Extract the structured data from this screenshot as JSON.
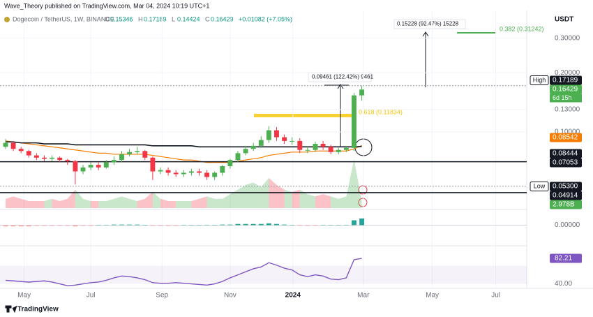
{
  "header": {
    "publisher": "Wave_Theory published on TradingView.com, Mar 04, 2024 10:19 UTC+1",
    "symbol": "Dogecoin / TetherUS, 1W, BINANCE",
    "ohlc": [
      {
        "key": "O",
        "value": "0.15346"
      },
      {
        "key": "H",
        "value": "0.17189"
      },
      {
        "key": "L",
        "value": "0.14424"
      },
      {
        "key": "C",
        "value": "0.16429"
      }
    ],
    "change": "+0.01082 (+7.05%)",
    "currency": "USDT"
  },
  "chart_data": {
    "type": "candlestick",
    "log_scale": true,
    "up_color": "#4caf50",
    "down_color": "#f23645",
    "open": [
      0.084,
      0.088,
      0.082,
      0.08,
      0.076,
      0.074,
      0.073,
      0.074,
      0.072,
      0.071,
      0.063,
      0.066,
      0.068,
      0.066,
      0.07,
      0.072,
      0.077,
      0.079,
      0.08,
      0.074,
      0.063,
      0.064,
      0.062,
      0.061,
      0.062,
      0.063,
      0.062,
      0.059,
      0.062,
      0.067,
      0.072,
      0.078,
      0.082,
      0.085,
      0.091,
      0.102,
      0.094,
      0.09,
      0.09,
      0.081,
      0.081,
      0.087,
      0.084,
      0.079,
      0.081,
      0.083,
      0.15346
    ],
    "high": [
      0.092,
      0.09,
      0.084,
      0.081,
      0.078,
      0.076,
      0.076,
      0.075,
      0.073,
      0.072,
      0.068,
      0.07,
      0.07,
      0.072,
      0.075,
      0.08,
      0.082,
      0.084,
      0.081,
      0.075,
      0.066,
      0.066,
      0.064,
      0.064,
      0.065,
      0.065,
      0.064,
      0.063,
      0.068,
      0.073,
      0.08,
      0.085,
      0.088,
      0.095,
      0.107,
      0.106,
      0.097,
      0.094,
      0.093,
      0.084,
      0.089,
      0.09,
      0.086,
      0.083,
      0.085,
      0.158,
      0.17189
    ],
    "low": [
      0.082,
      0.08,
      0.078,
      0.074,
      0.072,
      0.071,
      0.071,
      0.07,
      0.068,
      0.054,
      0.061,
      0.064,
      0.064,
      0.065,
      0.068,
      0.07,
      0.075,
      0.077,
      0.072,
      0.057,
      0.061,
      0.06,
      0.059,
      0.059,
      0.06,
      0.06,
      0.057,
      0.057,
      0.06,
      0.065,
      0.07,
      0.076,
      0.08,
      0.083,
      0.088,
      0.09,
      0.087,
      0.086,
      0.078,
      0.078,
      0.079,
      0.081,
      0.077,
      0.077,
      0.079,
      0.08,
      0.14424
    ],
    "close": [
      0.088,
      0.082,
      0.08,
      0.076,
      0.074,
      0.073,
      0.074,
      0.072,
      0.071,
      0.063,
      0.066,
      0.068,
      0.066,
      0.07,
      0.072,
      0.077,
      0.079,
      0.08,
      0.074,
      0.063,
      0.064,
      0.062,
      0.061,
      0.062,
      0.063,
      0.062,
      0.059,
      0.062,
      0.067,
      0.072,
      0.078,
      0.082,
      0.085,
      0.091,
      0.102,
      0.094,
      0.09,
      0.09,
      0.081,
      0.081,
      0.087,
      0.084,
      0.079,
      0.081,
      0.083,
      0.15346,
      0.16429
    ],
    "lines": [
      {
        "color": "#f57c00",
        "values": [
          0.09,
          0.089,
          0.088,
          0.087,
          0.086,
          0.085,
          0.084,
          0.083,
          0.082,
          0.081,
          0.08,
          0.079,
          0.078,
          0.078,
          0.077,
          0.077,
          0.077,
          0.077,
          0.077,
          0.076,
          0.075,
          0.074,
          0.073,
          0.072,
          0.072,
          0.071,
          0.07,
          0.07,
          0.07,
          0.07,
          0.071,
          0.072,
          0.073,
          0.074,
          0.076,
          0.077,
          0.078,
          0.079,
          0.079,
          0.079,
          0.08,
          0.08,
          0.08,
          0.08,
          0.08,
          0.082,
          0.08542
        ]
      },
      {
        "color": "#131722",
        "values": [
          0.089,
          0.089,
          0.088,
          0.088,
          0.088,
          0.087,
          0.087,
          0.087,
          0.087,
          0.086,
          0.086,
          0.086,
          0.086,
          0.086,
          0.086,
          0.086,
          0.086,
          0.086,
          0.086,
          0.085,
          0.085,
          0.085,
          0.085,
          0.085,
          0.085,
          0.084,
          0.084,
          0.084,
          0.084,
          0.084,
          0.084,
          0.084,
          0.084,
          0.084,
          0.084,
          0.084,
          0.084,
          0.084,
          0.084,
          0.084,
          0.084,
          0.084,
          0.084,
          0.084,
          0.084,
          0.084,
          0.08444
        ]
      }
    ],
    "xlim": [
      -0.72,
      67.3
    ],
    "xticks": [
      {
        "value": 2.4,
        "label": "May"
      },
      {
        "value": 11,
        "label": "Jul"
      },
      {
        "value": 20.2,
        "label": "Sep"
      },
      {
        "value": 29,
        "label": "Nov"
      },
      {
        "value": 37.1,
        "label": "2024"
      },
      {
        "value": 46.2,
        "label": "Mar"
      },
      {
        "value": 55.1,
        "label": "May"
      },
      {
        "value": 63.3,
        "label": "Jul"
      }
    ],
    "ylim": [
      0.041,
      0.415
    ],
    "yticks": [
      {
        "value": 0.3,
        "label": "0.30000"
      },
      {
        "value": 0.2,
        "label": "0.20000"
      },
      {
        "value": 0.13,
        "label": "0.13000"
      },
      {
        "value": 0.1,
        "label": "0.10000"
      }
    ],
    "markers": [
      {
        "name": "High",
        "value": 0.17189,
        "color": "#131722"
      },
      {
        "value": 0.16429,
        "color": "#4caf50",
        "note": "6d 15h"
      },
      {
        "value": 0.08542,
        "color": "#f57c00"
      },
      {
        "value": 0.08444,
        "color": "#131722"
      },
      {
        "value": 0.07053,
        "color": "#131722"
      },
      {
        "name": "Low",
        "value": 0.053,
        "label": "0.05300",
        "color": "#131722"
      },
      {
        "value": 0.04914,
        "color": "#131722"
      }
    ],
    "annotations": [
      "0.09461 (122.42%) 9461",
      "0.15228 (92.47%) 15228",
      "0.382 (0.31242)",
      "0.618 (0.11834)"
    ],
    "volume": {
      "values": [
        4,
        5,
        4,
        3,
        3,
        3,
        4,
        3,
        4,
        8,
        4,
        3,
        3,
        3,
        4,
        5,
        4,
        3,
        4,
        7,
        4,
        3,
        3,
        3,
        3,
        4,
        5,
        4,
        4,
        6,
        8,
        10,
        11,
        9,
        13,
        10,
        8,
        7,
        8,
        6,
        5,
        6,
        5,
        4,
        5,
        21,
        2.978
      ],
      "value_labels": [
        null,
        null,
        null,
        null,
        null,
        null,
        null,
        null,
        null,
        null,
        null,
        null,
        null,
        null,
        null,
        null,
        null,
        null,
        null,
        null,
        null,
        null,
        null,
        null,
        null,
        null,
        null,
        null,
        null,
        null,
        null,
        null,
        null,
        null,
        null,
        null,
        null,
        null,
        null,
        null,
        null,
        null,
        null,
        null,
        null,
        null,
        "2.978B"
      ],
      "ylim": [
        0,
        25
      ]
    },
    "macd": {
      "values": [
        -0.002,
        -0.002,
        -0.002,
        -0.002,
        -0.001,
        -0.001,
        -0.001,
        -0.001,
        -0.001,
        -0.002,
        -0.001,
        -0.001,
        0,
        0,
        0.001,
        0.001,
        0.001,
        0.001,
        0,
        -0.001,
        -0.001,
        -0.001,
        -0.001,
        0,
        0,
        0,
        0,
        0,
        0.001,
        0.001,
        0.002,
        0.002,
        0.002,
        0.002,
        0.003,
        0.002,
        0.001,
        0,
        -0.001,
        -0.001,
        -0.001,
        0,
        0,
        0,
        0,
        0.008,
        0.011
      ],
      "ylim": [
        -0.02,
        0.02
      ],
      "yticks": [
        {
          "value": 0,
          "label": "0.00000"
        }
      ]
    },
    "rsi": {
      "color": "#7e57c2",
      "values": [
        46,
        45,
        44,
        43,
        44,
        45,
        43,
        40,
        37,
        38,
        40,
        42,
        43,
        46,
        50,
        53,
        52,
        50,
        47,
        42,
        41,
        41,
        42,
        41,
        40,
        39,
        38,
        40,
        44,
        50,
        55,
        60,
        65,
        68,
        75,
        71,
        66,
        63,
        55,
        52,
        55,
        53,
        48,
        47,
        50,
        80,
        82.21
      ],
      "ylim": [
        32.6,
        103
      ],
      "band": [
        40,
        70
      ],
      "yticks": [
        {
          "value": 40,
          "label": "40.00"
        }
      ]
    }
  },
  "footer": "TradingView"
}
